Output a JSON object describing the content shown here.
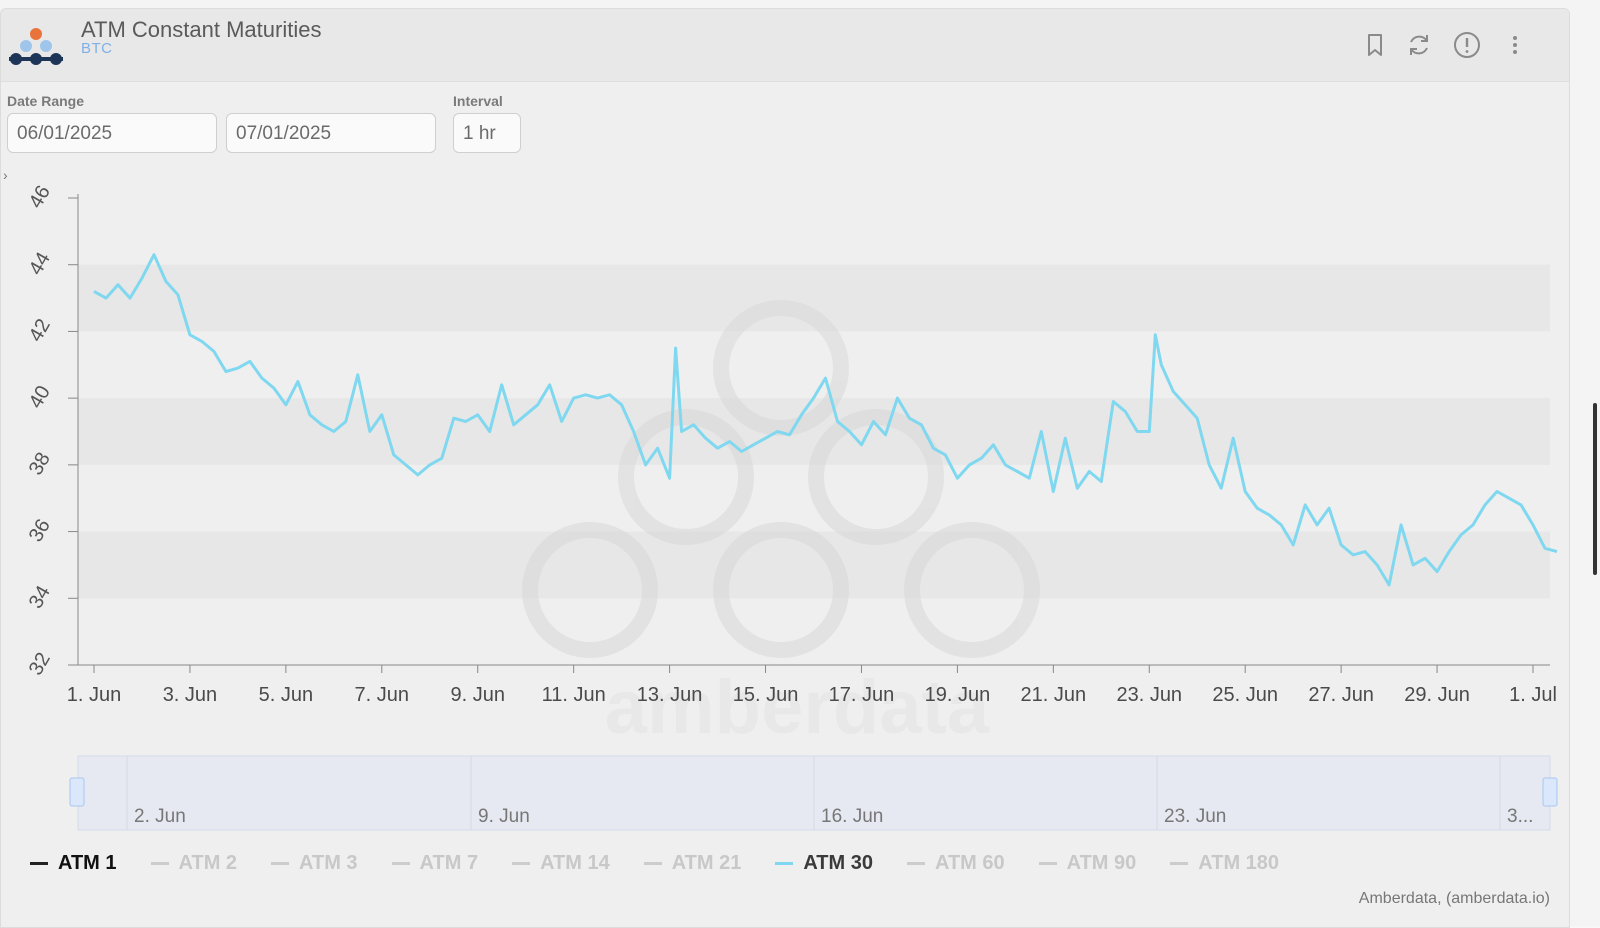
{
  "header": {
    "title": "ATM Constant Maturities",
    "subtitle": "BTC",
    "icons": [
      "bookmark-icon",
      "refresh-icon",
      "info-icon",
      "more-vertical-icon"
    ]
  },
  "controls": {
    "date_range_label": "Date Range",
    "start_date": "06/01/2025",
    "end_date": "07/01/2025",
    "interval_label": "Interval",
    "interval": "1 hr"
  },
  "chart_data": {
    "type": "line",
    "title": "",
    "xlabel": "",
    "ylabel": "",
    "ylim": [
      32,
      46
    ],
    "y_ticks": [
      "32",
      "34",
      "36",
      "38",
      "40",
      "42",
      "44",
      "46"
    ],
    "x_ticks": [
      "1. Jun",
      "3. Jun",
      "5. Jun",
      "7. Jun",
      "9. Jun",
      "11. Jun",
      "13. Jun",
      "15. Jun",
      "17. Jun",
      "19. Jun",
      "21. Jun",
      "23. Jun",
      "25. Jun",
      "27. Jun",
      "29. Jun",
      "1. Jul"
    ],
    "navigator_ticks": [
      "2. Jun",
      "9. Jun",
      "16. Jun",
      "23. Jun",
      "3..."
    ],
    "series": [
      {
        "name": "ATM 30",
        "color": "#7fd8ef",
        "points": [
          [
            "2025-06-01 00:00",
            43.2
          ],
          [
            "2025-06-01 06:00",
            43.0
          ],
          [
            "2025-06-01 12:00",
            43.4
          ],
          [
            "2025-06-01 18:00",
            43.0
          ],
          [
            "2025-06-02 00:00",
            43.6
          ],
          [
            "2025-06-02 06:00",
            44.3
          ],
          [
            "2025-06-02 12:00",
            43.5
          ],
          [
            "2025-06-02 18:00",
            43.1
          ],
          [
            "2025-06-03 00:00",
            41.9
          ],
          [
            "2025-06-03 06:00",
            41.7
          ],
          [
            "2025-06-03 12:00",
            41.4
          ],
          [
            "2025-06-03 18:00",
            40.8
          ],
          [
            "2025-06-04 00:00",
            40.9
          ],
          [
            "2025-06-04 06:00",
            41.1
          ],
          [
            "2025-06-04 12:00",
            40.6
          ],
          [
            "2025-06-04 18:00",
            40.3
          ],
          [
            "2025-06-05 00:00",
            39.8
          ],
          [
            "2025-06-05 06:00",
            40.5
          ],
          [
            "2025-06-05 12:00",
            39.5
          ],
          [
            "2025-06-05 18:00",
            39.2
          ],
          [
            "2025-06-06 00:00",
            39.0
          ],
          [
            "2025-06-06 06:00",
            39.3
          ],
          [
            "2025-06-06 12:00",
            40.7
          ],
          [
            "2025-06-06 18:00",
            39.0
          ],
          [
            "2025-06-07 00:00",
            39.5
          ],
          [
            "2025-06-07 06:00",
            38.3
          ],
          [
            "2025-06-07 12:00",
            38.0
          ],
          [
            "2025-06-07 18:00",
            37.7
          ],
          [
            "2025-06-08 00:00",
            38.0
          ],
          [
            "2025-06-08 06:00",
            38.2
          ],
          [
            "2025-06-08 12:00",
            39.4
          ],
          [
            "2025-06-08 18:00",
            39.3
          ],
          [
            "2025-06-09 00:00",
            39.5
          ],
          [
            "2025-06-09 06:00",
            39.0
          ],
          [
            "2025-06-09 12:00",
            40.4
          ],
          [
            "2025-06-09 18:00",
            39.2
          ],
          [
            "2025-06-10 00:00",
            39.5
          ],
          [
            "2025-06-10 06:00",
            39.8
          ],
          [
            "2025-06-10 12:00",
            40.4
          ],
          [
            "2025-06-10 18:00",
            39.3
          ],
          [
            "2025-06-11 00:00",
            40.0
          ],
          [
            "2025-06-11 06:00",
            40.1
          ],
          [
            "2025-06-11 12:00",
            40.0
          ],
          [
            "2025-06-11 18:00",
            40.1
          ],
          [
            "2025-06-12 00:00",
            39.8
          ],
          [
            "2025-06-12 06:00",
            39.0
          ],
          [
            "2025-06-12 12:00",
            38.0
          ],
          [
            "2025-06-12 18:00",
            38.5
          ],
          [
            "2025-06-13 00:00",
            37.6
          ],
          [
            "2025-06-13 03:00",
            41.5
          ],
          [
            "2025-06-13 06:00",
            39.0
          ],
          [
            "2025-06-13 12:00",
            39.2
          ],
          [
            "2025-06-13 18:00",
            38.8
          ],
          [
            "2025-06-14 00:00",
            38.5
          ],
          [
            "2025-06-14 06:00",
            38.7
          ],
          [
            "2025-06-14 12:00",
            38.4
          ],
          [
            "2025-06-14 18:00",
            38.6
          ],
          [
            "2025-06-15 00:00",
            38.8
          ],
          [
            "2025-06-15 06:00",
            39.0
          ],
          [
            "2025-06-15 12:00",
            38.9
          ],
          [
            "2025-06-15 18:00",
            39.5
          ],
          [
            "2025-06-16 00:00",
            40.0
          ],
          [
            "2025-06-16 06:00",
            40.6
          ],
          [
            "2025-06-16 12:00",
            39.3
          ],
          [
            "2025-06-16 18:00",
            39.0
          ],
          [
            "2025-06-17 00:00",
            38.6
          ],
          [
            "2025-06-17 06:00",
            39.3
          ],
          [
            "2025-06-17 12:00",
            38.9
          ],
          [
            "2025-06-17 18:00",
            40.0
          ],
          [
            "2025-06-18 00:00",
            39.4
          ],
          [
            "2025-06-18 06:00",
            39.2
          ],
          [
            "2025-06-18 12:00",
            38.5
          ],
          [
            "2025-06-18 18:00",
            38.3
          ],
          [
            "2025-06-19 00:00",
            37.6
          ],
          [
            "2025-06-19 06:00",
            38.0
          ],
          [
            "2025-06-19 12:00",
            38.2
          ],
          [
            "2025-06-19 18:00",
            38.6
          ],
          [
            "2025-06-20 00:00",
            38.0
          ],
          [
            "2025-06-20 06:00",
            37.8
          ],
          [
            "2025-06-20 12:00",
            37.6
          ],
          [
            "2025-06-20 18:00",
            39.0
          ],
          [
            "2025-06-21 00:00",
            37.2
          ],
          [
            "2025-06-21 06:00",
            38.8
          ],
          [
            "2025-06-21 12:00",
            37.3
          ],
          [
            "2025-06-21 18:00",
            37.8
          ],
          [
            "2025-06-22 00:00",
            37.5
          ],
          [
            "2025-06-22 06:00",
            39.9
          ],
          [
            "2025-06-22 12:00",
            39.6
          ],
          [
            "2025-06-22 18:00",
            39.0
          ],
          [
            "2025-06-23 00:00",
            39.0
          ],
          [
            "2025-06-23 03:00",
            41.9
          ],
          [
            "2025-06-23 06:00",
            41.0
          ],
          [
            "2025-06-23 12:00",
            40.2
          ],
          [
            "2025-06-23 18:00",
            39.8
          ],
          [
            "2025-06-24 00:00",
            39.4
          ],
          [
            "2025-06-24 06:00",
            38.0
          ],
          [
            "2025-06-24 12:00",
            37.3
          ],
          [
            "2025-06-24 18:00",
            38.8
          ],
          [
            "2025-06-25 00:00",
            37.2
          ],
          [
            "2025-06-25 06:00",
            36.7
          ],
          [
            "2025-06-25 12:00",
            36.5
          ],
          [
            "2025-06-25 18:00",
            36.2
          ],
          [
            "2025-06-26 00:00",
            35.6
          ],
          [
            "2025-06-26 06:00",
            36.8
          ],
          [
            "2025-06-26 12:00",
            36.2
          ],
          [
            "2025-06-26 18:00",
            36.7
          ],
          [
            "2025-06-27 00:00",
            35.6
          ],
          [
            "2025-06-27 06:00",
            35.3
          ],
          [
            "2025-06-27 12:00",
            35.4
          ],
          [
            "2025-06-27 18:00",
            35.0
          ],
          [
            "2025-06-28 00:00",
            34.4
          ],
          [
            "2025-06-28 06:00",
            36.2
          ],
          [
            "2025-06-28 12:00",
            35.0
          ],
          [
            "2025-06-28 18:00",
            35.2
          ],
          [
            "2025-06-29 00:00",
            34.8
          ],
          [
            "2025-06-29 06:00",
            35.4
          ],
          [
            "2025-06-29 12:00",
            35.9
          ],
          [
            "2025-06-29 18:00",
            36.2
          ],
          [
            "2025-06-30 00:00",
            36.8
          ],
          [
            "2025-06-30 06:00",
            37.2
          ],
          [
            "2025-06-30 12:00",
            37.0
          ],
          [
            "2025-06-30 18:00",
            36.8
          ],
          [
            "2025-07-01 00:00",
            36.2
          ],
          [
            "2025-07-01 06:00",
            35.5
          ],
          [
            "2025-07-01 12:00",
            35.4
          ]
        ]
      }
    ],
    "grid": true,
    "legend_position": "bottom"
  },
  "legend": [
    {
      "label": "ATM 1",
      "color": "#222222",
      "active": true
    },
    {
      "label": "ATM 2",
      "color": "#cccccc",
      "active": false
    },
    {
      "label": "ATM 3",
      "color": "#cccccc",
      "active": false
    },
    {
      "label": "ATM 7",
      "color": "#cccccc",
      "active": false
    },
    {
      "label": "ATM 14",
      "color": "#cccccc",
      "active": false
    },
    {
      "label": "ATM 21",
      "color": "#cccccc",
      "active": false
    },
    {
      "label": "ATM 30",
      "color": "#7fd8ef",
      "active": true
    },
    {
      "label": "ATM 60",
      "color": "#cccccc",
      "active": false
    },
    {
      "label": "ATM 90",
      "color": "#cccccc",
      "active": false
    },
    {
      "label": "ATM 180",
      "color": "#cccccc",
      "active": false
    }
  ],
  "watermark": "amberdata",
  "credit": "Amberdata, (amberdata.io)"
}
